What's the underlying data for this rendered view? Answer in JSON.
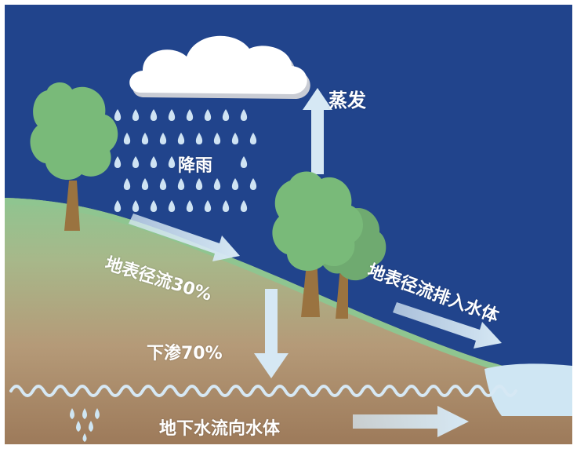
{
  "labels": {
    "evaporation": "蒸发",
    "rain": "降雨",
    "surface_runoff": "地表径流30%",
    "infiltration": "下渗70%",
    "runoff_to_water": "地表径流排入水体",
    "groundwater_flow": "地下水流向水体"
  },
  "colors": {
    "sky": "#21448C",
    "arrow": "#D6E8F4",
    "water": "#CFE6F3",
    "tree": "#79BA79",
    "trunk": "#9A7340",
    "grass": "#8FC590",
    "soil": "#B08D6B",
    "cloud": "#FFFFFF"
  },
  "icons": [
    "cloud-icon",
    "raindrop-icon",
    "tree-icon",
    "arrow-icon",
    "wave-icon"
  ]
}
